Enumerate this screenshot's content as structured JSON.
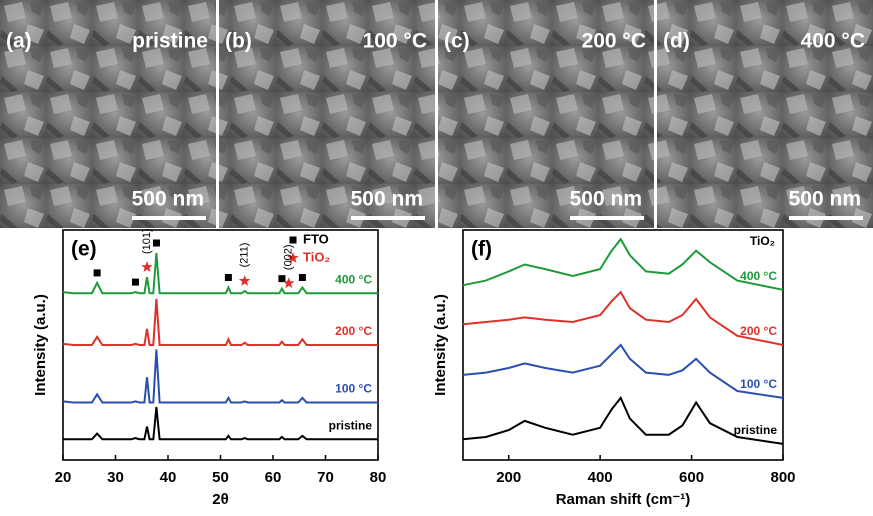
{
  "sem_panels": [
    {
      "label": "(a)",
      "condition": "pristine",
      "scale_bar": "500 nm"
    },
    {
      "label": "(b)",
      "condition": "100 °C",
      "scale_bar": "500 nm"
    },
    {
      "label": "(c)",
      "condition": "200 °C",
      "scale_bar": "500 nm"
    },
    {
      "label": "(d)",
      "condition": "400 °C",
      "scale_bar": "500 nm"
    }
  ],
  "chart_data": [
    {
      "type": "line",
      "panel_label": "(e)",
      "x_label": "2θ",
      "y_label": "Intensity (a.u.)",
      "x": [
        20,
        22,
        24,
        25.5,
        26.5,
        27.5,
        30,
        33,
        33.8,
        34.6,
        35.5,
        36,
        36.5,
        37.2,
        37.8,
        38.4,
        40,
        45,
        50,
        51,
        51.5,
        52,
        54,
        54.6,
        55.2,
        58,
        61.2,
        61.7,
        62.2,
        64.8,
        65.6,
        66.4,
        70,
        75,
        80
      ],
      "xlim": [
        20,
        80
      ],
      "xticks": [
        20,
        30,
        40,
        50,
        60,
        70,
        80
      ],
      "ylim": [
        0,
        100
      ],
      "series": [
        {
          "name": "pristine",
          "color": "#000000",
          "values": [
            9,
            9,
            9,
            9,
            11.5,
            9,
            9,
            9,
            9.5,
            9,
            9,
            14.5,
            9,
            9,
            23,
            9,
            9,
            9,
            9,
            9,
            10.5,
            9,
            9,
            9.5,
            9,
            9,
            9,
            10,
            9,
            9,
            10.5,
            9,
            9,
            9,
            9
          ]
        },
        {
          "name": "100 °C",
          "color": "#2b4fb0",
          "values": [
            25.5,
            25,
            25,
            25,
            28.5,
            25,
            25,
            25,
            25.5,
            25,
            25,
            36,
            25,
            25,
            48,
            25,
            25,
            25,
            25,
            25,
            27,
            25,
            25,
            25.5,
            25,
            25,
            25,
            26,
            25,
            25,
            27,
            25,
            25,
            25,
            25
          ]
        },
        {
          "name": "200 °C",
          "color": "#e0302a",
          "values": [
            50.5,
            50,
            50,
            50,
            53.5,
            50,
            50,
            50,
            50.5,
            50,
            50,
            57,
            50,
            50,
            70,
            50,
            50,
            50,
            50,
            50,
            52.5,
            50,
            50,
            51,
            50,
            50,
            50,
            51.5,
            50,
            50,
            52.5,
            50,
            50,
            50,
            50
          ]
        },
        {
          "name": "400 °C",
          "color": "#1e9a3a",
          "values": [
            73,
            72.5,
            72.5,
            72.5,
            77,
            72.5,
            72.5,
            72.5,
            73,
            72.5,
            72.5,
            79.5,
            72.5,
            72.5,
            90,
            72.5,
            72.5,
            72.5,
            72.5,
            72.5,
            75,
            72.5,
            72.5,
            73.5,
            72.5,
            72.5,
            72.5,
            74.5,
            72.5,
            72.5,
            75,
            72.5,
            72.5,
            72.5,
            72.5
          ]
        }
      ],
      "markers": [
        {
          "name": "FTO",
          "color": "#000000",
          "symbol": "square",
          "x": [
            26.5,
            33.8,
            37.8,
            51.5,
            61.7,
            65.6
          ]
        },
        {
          "name": "TiO₂",
          "color": "#e0302a",
          "symbol": "star",
          "x": [
            36,
            54.6,
            63
          ]
        }
      ],
      "annotations": [
        {
          "text": "(101)",
          "x": 36
        },
        {
          "text": "(211)",
          "x": 54.6
        },
        {
          "text": "(002)",
          "x": 63
        }
      ]
    },
    {
      "type": "line",
      "panel_label": "(f)",
      "x_label": "Raman shift (cm⁻¹)",
      "y_label": "Intensity (a.u.)",
      "note": "TiO₂",
      "x": [
        100,
        150,
        200,
        235,
        280,
        340,
        400,
        425,
        445,
        465,
        500,
        550,
        580,
        610,
        640,
        700,
        800
      ],
      "xlim": [
        100,
        800
      ],
      "xticks": [
        200,
        400,
        600,
        800
      ],
      "ylim": [
        0,
        100
      ],
      "series": [
        {
          "name": "pristine",
          "color": "#000000",
          "values": [
            9,
            10,
            13,
            17,
            14,
            11,
            14,
            22,
            27,
            18,
            11,
            11,
            15,
            25,
            16,
            10,
            7
          ]
        },
        {
          "name": "100 °C",
          "color": "#2b4fb0",
          "values": [
            37,
            38,
            40,
            42,
            40,
            38,
            41,
            46,
            50,
            44,
            38,
            37,
            39,
            44,
            38,
            30,
            27
          ]
        },
        {
          "name": "200 °C",
          "color": "#e0302a",
          "values": [
            59,
            60,
            61,
            62,
            61,
            60,
            63,
            69,
            73,
            66,
            61,
            60,
            63,
            70,
            62,
            54,
            50
          ]
        },
        {
          "name": "400 °C",
          "color": "#1e9a3a",
          "values": [
            76,
            78,
            82,
            85,
            83,
            80,
            83,
            91,
            96,
            89,
            82,
            81,
            85,
            91,
            86,
            78,
            74
          ]
        }
      ]
    }
  ]
}
